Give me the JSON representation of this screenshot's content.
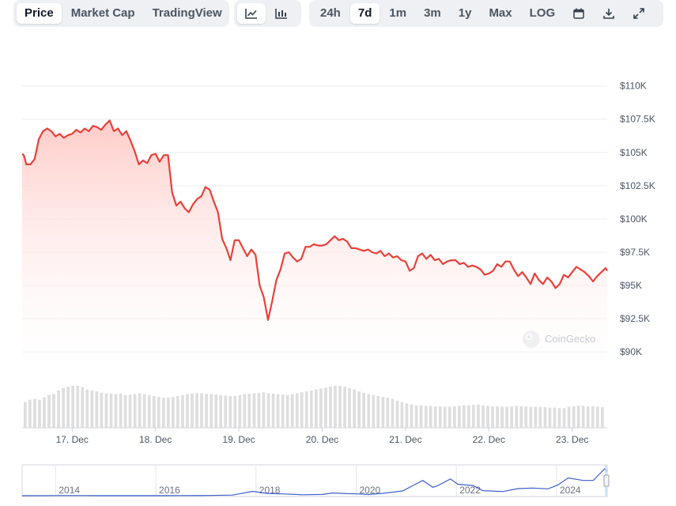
{
  "toolbar": {
    "metric_tabs": [
      "Price",
      "Market Cap",
      "TradingView"
    ],
    "chart_type_icons": [
      "line-chart-icon",
      "candlestick-chart-icon"
    ],
    "range_tabs": [
      "24h",
      "7d",
      "1m",
      "3m",
      "1y",
      "Max"
    ],
    "log_label": "LOG",
    "tool_icons": [
      "calendar-icon",
      "download-icon",
      "fullscreen-icon"
    ],
    "active_metric": "Price",
    "active_range": "7d"
  },
  "watermark": "CoinGecko",
  "colors": {
    "line": "#e9403a",
    "area": "#ffd2cf",
    "volume": "#dedede",
    "overview_line": "#3b5fcc"
  },
  "chart_data": {
    "type": "area",
    "title": "",
    "y_ticks": [
      "$90K",
      "$92.5K",
      "$95K",
      "$97.5K",
      "$100K",
      "$102.5K",
      "$105K",
      "$107.5K",
      "$110K"
    ],
    "y_tick_values": [
      90000,
      92500,
      95000,
      97500,
      100000,
      102500,
      105000,
      107500,
      110000
    ],
    "ylim": [
      88700,
      112300
    ],
    "x_ticks": [
      "17. Dec",
      "18. Dec",
      "19. Dec",
      "20. Dec",
      "21. Dec",
      "22. Dec",
      "23. Dec"
    ],
    "x_tick_positions": [
      1,
      2,
      3,
      4,
      5,
      6,
      7
    ],
    "xlim": [
      0.4,
      7.42
    ],
    "series": [
      {
        "values": [
          [
            0.4,
            104900
          ],
          [
            0.42,
            104800
          ],
          [
            0.45,
            104100
          ],
          [
            0.5,
            104100
          ],
          [
            0.55,
            104500
          ],
          [
            0.6,
            106000
          ],
          [
            0.65,
            106600
          ],
          [
            0.7,
            106800
          ],
          [
            0.75,
            106600
          ],
          [
            0.8,
            106200
          ],
          [
            0.85,
            106400
          ],
          [
            0.9,
            106100
          ],
          [
            0.95,
            106300
          ],
          [
            1.0,
            106400
          ],
          [
            1.05,
            106700
          ],
          [
            1.1,
            106500
          ],
          [
            1.15,
            106800
          ],
          [
            1.2,
            106600
          ],
          [
            1.25,
            107000
          ],
          [
            1.3,
            106900
          ],
          [
            1.35,
            106700
          ],
          [
            1.4,
            107100
          ],
          [
            1.45,
            107400
          ],
          [
            1.5,
            106600
          ],
          [
            1.55,
            106800
          ],
          [
            1.6,
            106300
          ],
          [
            1.65,
            106600
          ],
          [
            1.7,
            105900
          ],
          [
            1.75,
            105100
          ],
          [
            1.8,
            104100
          ],
          [
            1.85,
            104400
          ],
          [
            1.9,
            104200
          ],
          [
            1.95,
            104800
          ],
          [
            2.0,
            104900
          ],
          [
            2.05,
            104300
          ],
          [
            2.1,
            104800
          ],
          [
            2.15,
            104800
          ],
          [
            2.2,
            102000
          ],
          [
            2.25,
            101000
          ],
          [
            2.3,
            101300
          ],
          [
            2.35,
            100800
          ],
          [
            2.4,
            100500
          ],
          [
            2.45,
            101100
          ],
          [
            2.5,
            101500
          ],
          [
            2.55,
            101700
          ],
          [
            2.6,
            102400
          ],
          [
            2.65,
            102200
          ],
          [
            2.7,
            101300
          ],
          [
            2.75,
            100500
          ],
          [
            2.8,
            98500
          ],
          [
            2.85,
            97800
          ],
          [
            2.9,
            96900
          ],
          [
            2.95,
            98400
          ],
          [
            3.0,
            98400
          ],
          [
            3.05,
            97800
          ],
          [
            3.1,
            97200
          ],
          [
            3.15,
            97700
          ],
          [
            3.2,
            97300
          ],
          [
            3.25,
            95000
          ],
          [
            3.3,
            94100
          ],
          [
            3.35,
            92400
          ],
          [
            3.4,
            93800
          ],
          [
            3.45,
            95400
          ],
          [
            3.5,
            96200
          ],
          [
            3.55,
            97400
          ],
          [
            3.6,
            97500
          ],
          [
            3.65,
            97100
          ],
          [
            3.7,
            96800
          ],
          [
            3.75,
            97000
          ],
          [
            3.8,
            97900
          ],
          [
            3.85,
            97900
          ],
          [
            3.9,
            98100
          ],
          [
            3.95,
            98000
          ],
          [
            4.0,
            98000
          ],
          [
            4.05,
            98100
          ],
          [
            4.1,
            98400
          ],
          [
            4.15,
            98700
          ],
          [
            4.2,
            98400
          ],
          [
            4.25,
            98500
          ],
          [
            4.3,
            98300
          ],
          [
            4.35,
            97800
          ],
          [
            4.4,
            97800
          ],
          [
            4.45,
            97700
          ],
          [
            4.5,
            97600
          ],
          [
            4.55,
            97700
          ],
          [
            4.6,
            97500
          ],
          [
            4.65,
            97400
          ],
          [
            4.7,
            97600
          ],
          [
            4.75,
            97200
          ],
          [
            4.8,
            97400
          ],
          [
            4.85,
            97100
          ],
          [
            4.9,
            97200
          ],
          [
            4.95,
            96900
          ],
          [
            5.0,
            96800
          ],
          [
            5.05,
            96100
          ],
          [
            5.1,
            96300
          ],
          [
            5.15,
            97200
          ],
          [
            5.2,
            97400
          ],
          [
            5.25,
            97000
          ],
          [
            5.3,
            97300
          ],
          [
            5.35,
            96900
          ],
          [
            5.4,
            97000
          ],
          [
            5.45,
            96600
          ],
          [
            5.5,
            96800
          ],
          [
            5.55,
            96900
          ],
          [
            5.6,
            96900
          ],
          [
            5.65,
            96600
          ],
          [
            5.7,
            96700
          ],
          [
            5.75,
            96400
          ],
          [
            5.8,
            96500
          ],
          [
            5.85,
            96400
          ],
          [
            5.9,
            96200
          ],
          [
            5.95,
            95800
          ],
          [
            6.0,
            95900
          ],
          [
            6.05,
            96100
          ],
          [
            6.1,
            96600
          ],
          [
            6.15,
            96400
          ],
          [
            6.2,
            96800
          ],
          [
            6.25,
            96800
          ],
          [
            6.3,
            96200
          ],
          [
            6.35,
            95700
          ],
          [
            6.4,
            96000
          ],
          [
            6.45,
            95600
          ],
          [
            6.5,
            95100
          ],
          [
            6.55,
            95900
          ],
          [
            6.6,
            95400
          ],
          [
            6.65,
            95100
          ],
          [
            6.7,
            95600
          ],
          [
            6.75,
            95300
          ],
          [
            6.8,
            94800
          ],
          [
            6.85,
            95100
          ],
          [
            6.9,
            95800
          ],
          [
            6.95,
            95600
          ],
          [
            7.0,
            96000
          ],
          [
            7.05,
            96400
          ],
          [
            7.1,
            96200
          ],
          [
            7.15,
            96000
          ],
          [
            7.2,
            95700
          ],
          [
            7.25,
            95300
          ],
          [
            7.3,
            95700
          ],
          [
            7.35,
            96000
          ],
          [
            7.4,
            96300
          ],
          [
            7.42,
            96100
          ]
        ]
      }
    ],
    "volume_relative": [
      0.55,
      0.6,
      0.62,
      0.6,
      0.65,
      0.7,
      0.72,
      0.8,
      0.85,
      0.88,
      0.9,
      0.9,
      0.87,
      0.82,
      0.8,
      0.78,
      0.75,
      0.74,
      0.73,
      0.72,
      0.73,
      0.7,
      0.71,
      0.72,
      0.74,
      0.72,
      0.7,
      0.68,
      0.66,
      0.64,
      0.65,
      0.66,
      0.68,
      0.7,
      0.72,
      0.73,
      0.74,
      0.74,
      0.73,
      0.72,
      0.71,
      0.7,
      0.69,
      0.68,
      0.68,
      0.7,
      0.72,
      0.73,
      0.74,
      0.75,
      0.76,
      0.74,
      0.73,
      0.72,
      0.71,
      0.7,
      0.72,
      0.74,
      0.76,
      0.78,
      0.8,
      0.82,
      0.84,
      0.86,
      0.88,
      0.9,
      0.9,
      0.88,
      0.85,
      0.82,
      0.78,
      0.75,
      0.72,
      0.7,
      0.68,
      0.66,
      0.64,
      0.62,
      0.58,
      0.55,
      0.52,
      0.5,
      0.48,
      0.48,
      0.47,
      0.47,
      0.46,
      0.46,
      0.45,
      0.45,
      0.46,
      0.47,
      0.48,
      0.48,
      0.49,
      0.5,
      0.48,
      0.47,
      0.46,
      0.46,
      0.45,
      0.45,
      0.46,
      0.47,
      0.46,
      0.46,
      0.45,
      0.45,
      0.44,
      0.44,
      0.43,
      0.43,
      0.42,
      0.42,
      0.45,
      0.46,
      0.47,
      0.47,
      0.46,
      0.46,
      0.45,
      0.44
    ],
    "overview": {
      "x_ticks": [
        "2014",
        "2016",
        "2018",
        "2020",
        "2022",
        "2024"
      ],
      "x_tick_years": [
        2014,
        2016,
        2018,
        2020,
        2022,
        2024
      ],
      "xlim": [
        2013.3,
        2024.98
      ],
      "points": [
        [
          2013.3,
          150
        ],
        [
          2014.0,
          600
        ],
        [
          2014.5,
          500
        ],
        [
          2015.0,
          300
        ],
        [
          2015.5,
          250
        ],
        [
          2016.0,
          400
        ],
        [
          2016.5,
          650
        ],
        [
          2017.0,
          1000
        ],
        [
          2017.5,
          2500
        ],
        [
          2017.9,
          17000
        ],
        [
          2018.2,
          9000
        ],
        [
          2018.5,
          7000
        ],
        [
          2018.9,
          3800
        ],
        [
          2019.3,
          5000
        ],
        [
          2019.5,
          11000
        ],
        [
          2019.8,
          8000
        ],
        [
          2020.0,
          7200
        ],
        [
          2020.2,
          5000
        ],
        [
          2020.5,
          9200
        ],
        [
          2020.9,
          19000
        ],
        [
          2021.1,
          40000
        ],
        [
          2021.3,
          60000
        ],
        [
          2021.5,
          33000
        ],
        [
          2021.6,
          40000
        ],
        [
          2021.85,
          66000
        ],
        [
          2022.0,
          45000
        ],
        [
          2022.3,
          40000
        ],
        [
          2022.5,
          20000
        ],
        [
          2022.9,
          16500
        ],
        [
          2023.2,
          28000
        ],
        [
          2023.5,
          30000
        ],
        [
          2023.8,
          27000
        ],
        [
          2024.0,
          43000
        ],
        [
          2024.2,
          70000
        ],
        [
          2024.5,
          60000
        ],
        [
          2024.7,
          60000
        ],
        [
          2024.85,
          90000
        ],
        [
          2024.93,
          106000
        ],
        [
          2024.98,
          96000
        ]
      ],
      "ylim": [
        0,
        115000
      ]
    }
  }
}
